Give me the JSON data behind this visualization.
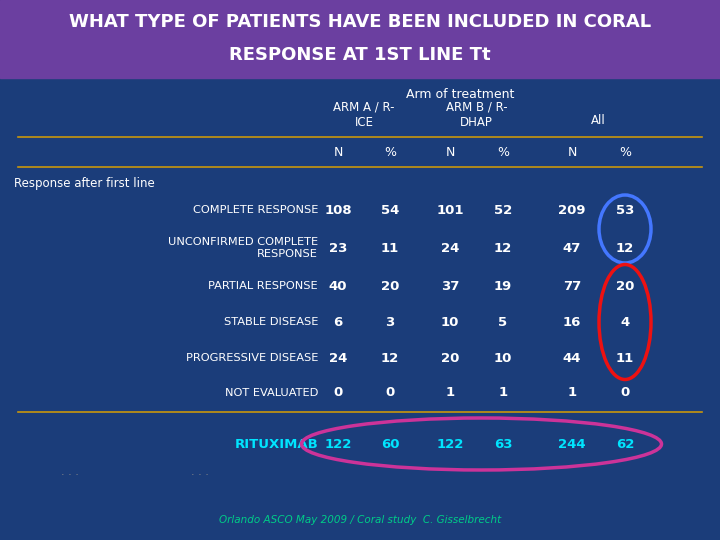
{
  "title_line1": "WHAT TYPE OF PATIENTS HAVE BEEN INCLUDED IN CORAL",
  "title_line2": "RESPONSE AT 1ST LINE Tt",
  "title_bg": "#6b3fa0",
  "bg_color": "#1b3d7a",
  "header1": "Arm of treatment",
  "header2a": "ARM A / R-\nICE",
  "header2b": "ARM B / R-\nDHAP",
  "header2c": "All",
  "col_headers": [
    "N",
    "%",
    "N",
    "%",
    "N",
    "%"
  ],
  "section_label": "Response after first line",
  "rows": [
    {
      "label": "COMPLETE RESPONSE",
      "values": [
        "108",
        "54",
        "101",
        "52",
        "209",
        "53"
      ]
    },
    {
      "label": "UNCONFIRMED COMPLETE\nRESPONSE",
      "values": [
        "23",
        "11",
        "24",
        "12",
        "47",
        "12"
      ]
    },
    {
      "label": "PARTIAL RESPONSE",
      "values": [
        "40",
        "20",
        "37",
        "19",
        "77",
        "20"
      ]
    },
    {
      "label": "STABLE DISEASE",
      "values": [
        "6",
        "3",
        "10",
        "5",
        "16",
        "4"
      ]
    },
    {
      "label": "PROGRESSIVE DISEASE",
      "values": [
        "24",
        "12",
        "20",
        "10",
        "44",
        "11"
      ]
    },
    {
      "label": "NOT EVALUATED",
      "values": [
        "0",
        "0",
        "1",
        "1",
        "1",
        "0"
      ]
    }
  ],
  "footer_label": "RITUXIMAB",
  "footer_values": [
    "122",
    "60",
    "122",
    "63",
    "244",
    "62"
  ],
  "footer_color": "#00e5ff",
  "citation": "Orlando ASCO May 2009 / Coral study  C. Gisselbrecht",
  "line_color": "#c8960c",
  "blue_circle_color": "#4477ff",
  "red_circle_color": "#ee1111",
  "pink_ellipse_color": "#cc3399"
}
